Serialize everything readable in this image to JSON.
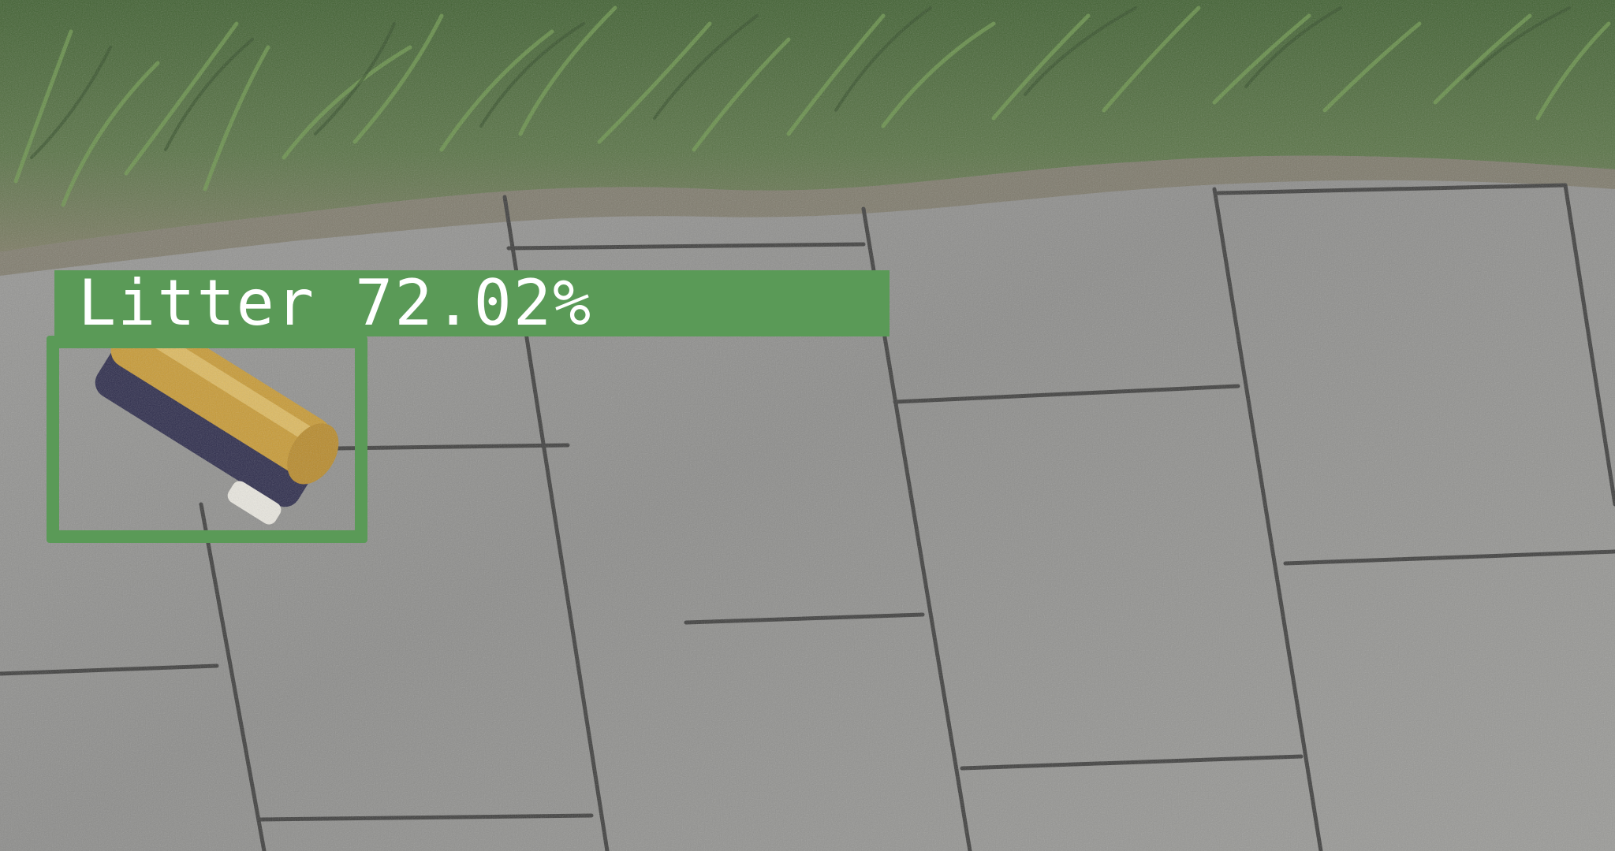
{
  "detection": {
    "label": "Litter",
    "confidence_text": "72.02%",
    "box_color": "#5a9a57"
  },
  "scene_colors": {
    "grass": "#4f6d3a",
    "pavement": "#8c8c8a",
    "joint": "#3a3a3a",
    "litter": "#c89a34"
  }
}
